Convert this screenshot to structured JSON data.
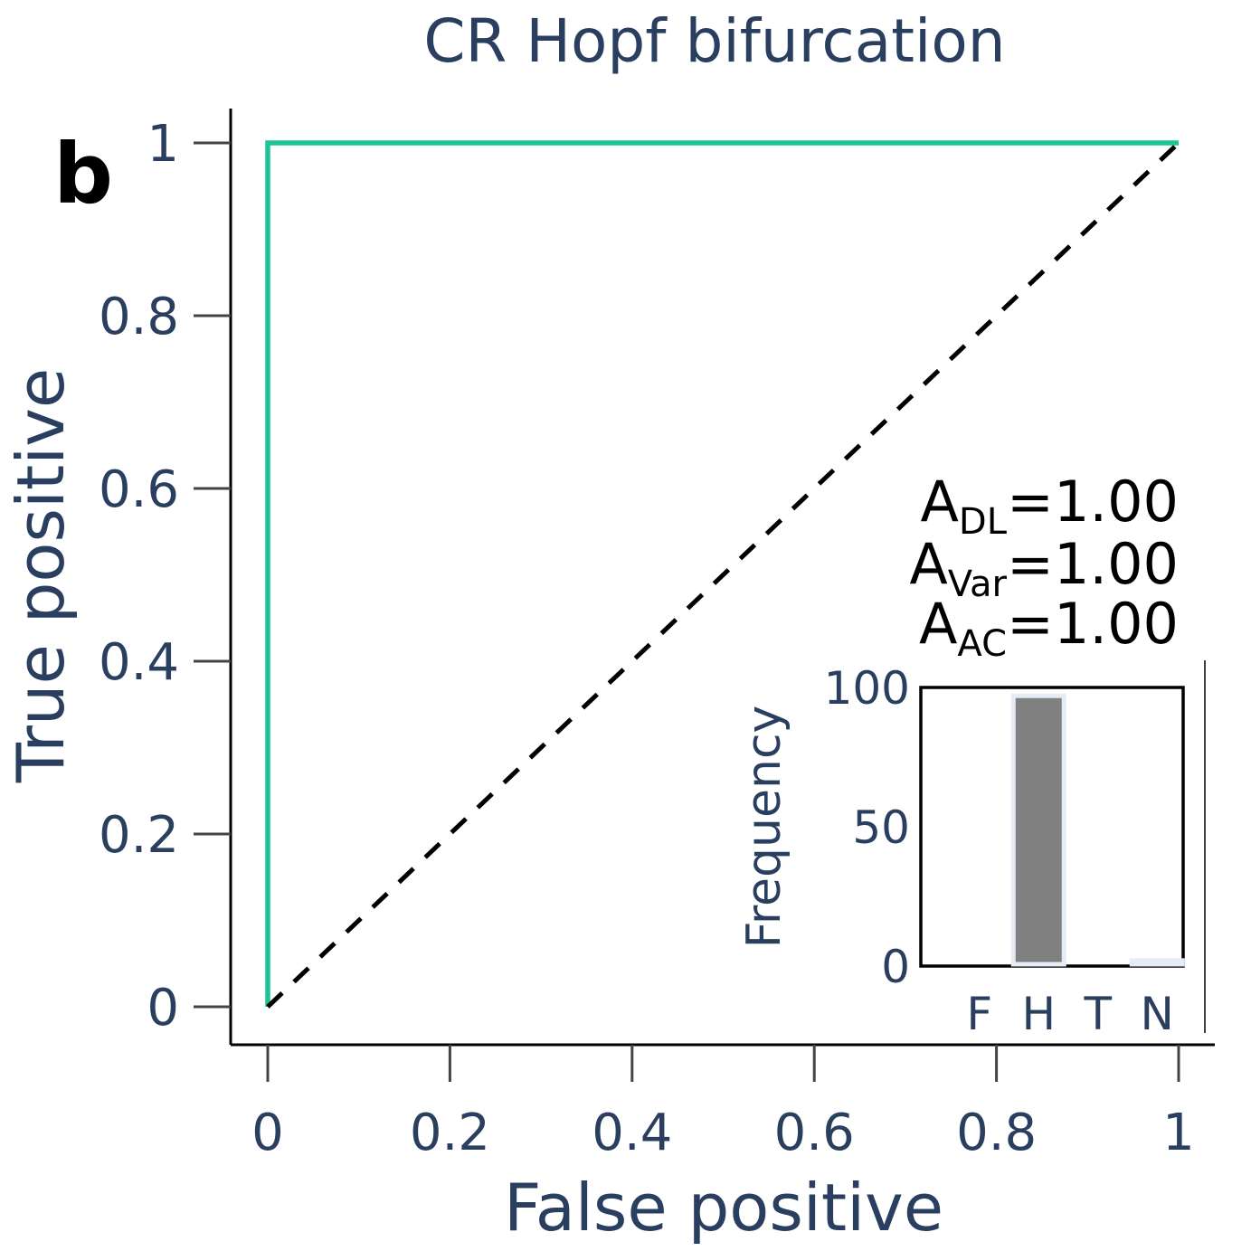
{
  "chart_data": [
    {
      "type": "line",
      "title": "CR Hopf bifurcation",
      "panel_label": "b",
      "xlabel": "False positive",
      "ylabel": "True positive",
      "xlim": [
        0,
        1
      ],
      "ylim": [
        0,
        1
      ],
      "x_ticks": [
        {
          "value": 0,
          "label": "0"
        },
        {
          "value": 0.2,
          "label": "0.2"
        },
        {
          "value": 0.4,
          "label": "0.4"
        },
        {
          "value": 0.6,
          "label": "0.6"
        },
        {
          "value": 0.8,
          "label": "0.8"
        },
        {
          "value": 1,
          "label": "1"
        }
      ],
      "y_ticks": [
        {
          "value": 0,
          "label": "0"
        },
        {
          "value": 0.2,
          "label": "0.2"
        },
        {
          "value": 0.4,
          "label": "0.4"
        },
        {
          "value": 0.6,
          "label": "0.6"
        },
        {
          "value": 0.8,
          "label": "0.8"
        },
        {
          "value": 1,
          "label": "1"
        }
      ],
      "grid": false,
      "series": [
        {
          "color": "#1dc496",
          "style": "solid",
          "x": [
            0,
            0,
            1
          ],
          "y": [
            0,
            1,
            1
          ]
        },
        {
          "color": "#000000",
          "style": "dashed",
          "x": [
            0,
            1
          ],
          "y": [
            0,
            1
          ]
        }
      ],
      "annotations": [
        {
          "base": "A",
          "sub": "DL",
          "text": "=1.00"
        },
        {
          "base": "A",
          "sub": "Var",
          "text": "=1.00"
        },
        {
          "base": "A",
          "sub": "AC",
          "text": "=1.00"
        }
      ]
    },
    {
      "type": "bar",
      "role": "inset",
      "categories": [
        "F",
        "H",
        "T",
        "N"
      ],
      "values": [
        0,
        97,
        0,
        2
      ],
      "ylabel": "Frequency",
      "ylim": [
        0,
        100
      ],
      "y_ticks": [
        {
          "value": 0,
          "label": "0"
        },
        {
          "value": 50,
          "label": "50"
        },
        {
          "value": 100,
          "label": "100"
        }
      ],
      "bar_color": "#808080",
      "bar_edge_color": "#e5ecf6"
    }
  ]
}
